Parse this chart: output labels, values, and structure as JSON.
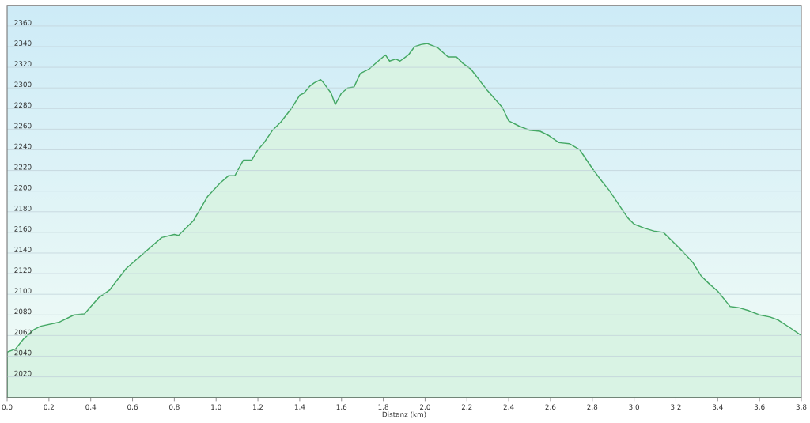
{
  "chart_data": {
    "type": "area",
    "xlabel": "Distanz (km)",
    "color": "#d9f3e4",
    "x": [
      0.0,
      0.04,
      0.08,
      0.13,
      0.16,
      0.25,
      0.32,
      0.37,
      0.44,
      0.49,
      0.52,
      0.57,
      0.66,
      0.74,
      0.8,
      0.82,
      0.89,
      0.96,
      1.02,
      1.06,
      1.09,
      1.13,
      1.17,
      1.2,
      1.23,
      1.27,
      1.31,
      1.36,
      1.4,
      1.42,
      1.45,
      1.47,
      1.5,
      1.51,
      1.55,
      1.57,
      1.6,
      1.63,
      1.66,
      1.69,
      1.73,
      1.77,
      1.81,
      1.83,
      1.86,
      1.88,
      1.92,
      1.95,
      1.98,
      2.01,
      2.06,
      2.11,
      2.15,
      2.18,
      2.22,
      2.3,
      2.37,
      2.4,
      2.45,
      2.5,
      2.55,
      2.59,
      2.64,
      2.69,
      2.74,
      2.8,
      2.84,
      2.88,
      2.92,
      2.97,
      3.0,
      3.05,
      3.1,
      3.14,
      3.18,
      3.23,
      3.28,
      3.32,
      3.36,
      3.4,
      3.46,
      3.5,
      3.55,
      3.6,
      3.65,
      3.69,
      3.75,
      3.8
    ],
    "values": [
      2044,
      2047,
      2057,
      2066,
      2069,
      2073,
      2080,
      2081,
      2097,
      2104,
      2112,
      2125,
      2141,
      2155,
      2158,
      2157,
      2171,
      2195,
      2208,
      2215,
      2215,
      2230,
      2230,
      2240,
      2247,
      2259,
      2267,
      2280,
      2293,
      2295,
      2302,
      2305,
      2308,
      2306,
      2295,
      2284,
      2295,
      2300,
      2301,
      2314,
      2318,
      2325,
      2332,
      2326,
      2328,
      2326,
      2332,
      2340,
      2342,
      2343,
      2339,
      2330,
      2330,
      2324,
      2318,
      2297,
      2281,
      2268,
      2263,
      2259,
      2258,
      2254,
      2247,
      2246,
      2240,
      2222,
      2211,
      2201,
      2189,
      2174,
      2168,
      2164,
      2161,
      2160,
      2152,
      2142,
      2131,
      2118,
      2110,
      2103,
      2088,
      2087,
      2084,
      2080,
      2078,
      2075,
      2067,
      2060
    ],
    "xlim": [
      0,
      3.8
    ],
    "ylim": [
      2000,
      2380
    ],
    "xticks": [
      {
        "value": 0,
        "label": "0.0"
      },
      0.2,
      0.4,
      0.6,
      0.8,
      {
        "value": 1,
        "label": "1.0"
      },
      1.2,
      1.4,
      1.6,
      1.8,
      {
        "value": 2,
        "label": "2.0"
      },
      2.2,
      2.4,
      2.6,
      2.8,
      {
        "value": 3,
        "label": "3.0"
      },
      3.2,
      3.4,
      3.6,
      3.8
    ],
    "yticks": [
      2020,
      2040,
      2060,
      2080,
      2100,
      2120,
      2140,
      2160,
      2180,
      2200,
      2220,
      2240,
      2260,
      2280,
      2300,
      2320,
      2340,
      2360
    ],
    "grid": "y"
  }
}
